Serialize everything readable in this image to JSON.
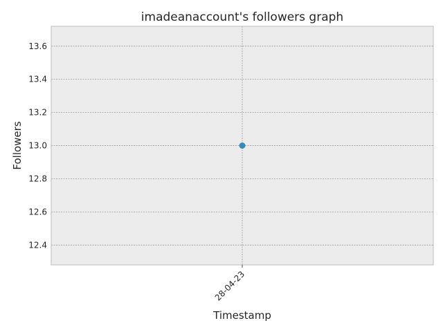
{
  "chart_data": {
    "type": "line",
    "title": "imadeanaccount's followers graph",
    "xlabel": "Timestamp",
    "ylabel": "Followers",
    "categories": [
      "28-04-23"
    ],
    "series": [
      {
        "values": [
          13
        ]
      }
    ],
    "ylim": [
      12.28,
      13.72
    ],
    "yticks": [
      12.4,
      12.6,
      12.8,
      13.0,
      13.2,
      13.4,
      13.6
    ],
    "ytick_labels": [
      "12.4",
      "12.6",
      "12.8",
      "13.0",
      "13.2",
      "13.4",
      "13.6"
    ],
    "x_tick_rotation_deg": 45,
    "grid": true,
    "legend": "none",
    "colors": {
      "plot_background": "#ececec",
      "grid": "#8a8a8a",
      "series": "#348abd",
      "spine": "#bcbcbc"
    }
  }
}
